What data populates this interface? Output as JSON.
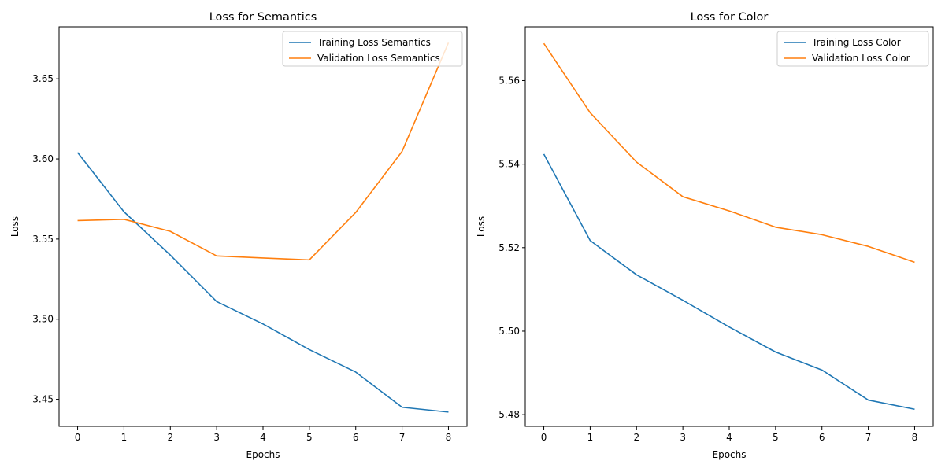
{
  "chart_data": [
    {
      "type": "line",
      "title": "Loss for Semantics",
      "xlabel": "Epochs",
      "ylabel": "Loss",
      "x": [
        0,
        1,
        2,
        3,
        4,
        5,
        6,
        7,
        8
      ],
      "xticks": [
        "0",
        "1",
        "2",
        "3",
        "4",
        "5",
        "6",
        "7",
        "8"
      ],
      "yticks": [
        "3.45",
        "3.50",
        "3.55",
        "3.60",
        "3.65"
      ],
      "xlim": [
        -0.4,
        8.4
      ],
      "ylim": [
        3.4331,
        3.6825
      ],
      "legend": "top-right",
      "grid": false,
      "series": [
        {
          "name": "Training Loss Semantics",
          "color": "#1f77b4",
          "values": [
            3.604,
            3.567,
            3.54,
            3.511,
            3.497,
            3.481,
            3.467,
            3.445,
            3.442
          ]
        },
        {
          "name": "Validation Loss Semantics",
          "color": "#ff7f0e",
          "values": [
            3.5615,
            3.5623,
            3.5548,
            3.5395,
            3.5382,
            3.537,
            3.5666,
            3.6047,
            3.6725
          ]
        }
      ]
    },
    {
      "type": "line",
      "title": "Loss for Color",
      "xlabel": "Epochs",
      "ylabel": "Loss",
      "x": [
        0,
        1,
        2,
        3,
        4,
        5,
        6,
        7,
        8
      ],
      "xticks": [
        "0",
        "1",
        "2",
        "3",
        "4",
        "5",
        "6",
        "7",
        "8"
      ],
      "yticks": [
        "5.48",
        "5.50",
        "5.52",
        "5.54",
        "5.56"
      ],
      "xlim": [
        -0.4,
        8.4
      ],
      "ylim": [
        5.4772,
        5.5729
      ],
      "legend": "top-right",
      "grid": false,
      "series": [
        {
          "name": "Training Loss Color",
          "color": "#1f77b4",
          "values": [
            5.5424,
            5.5217,
            5.5135,
            5.5074,
            5.501,
            5.495,
            5.4907,
            5.4835,
            5.4813
          ]
        },
        {
          "name": "Validation Loss Color",
          "color": "#ff7f0e",
          "values": [
            5.5689,
            5.5523,
            5.5405,
            5.5322,
            5.5288,
            5.5249,
            5.5231,
            5.5203,
            5.5165
          ]
        }
      ]
    }
  ]
}
